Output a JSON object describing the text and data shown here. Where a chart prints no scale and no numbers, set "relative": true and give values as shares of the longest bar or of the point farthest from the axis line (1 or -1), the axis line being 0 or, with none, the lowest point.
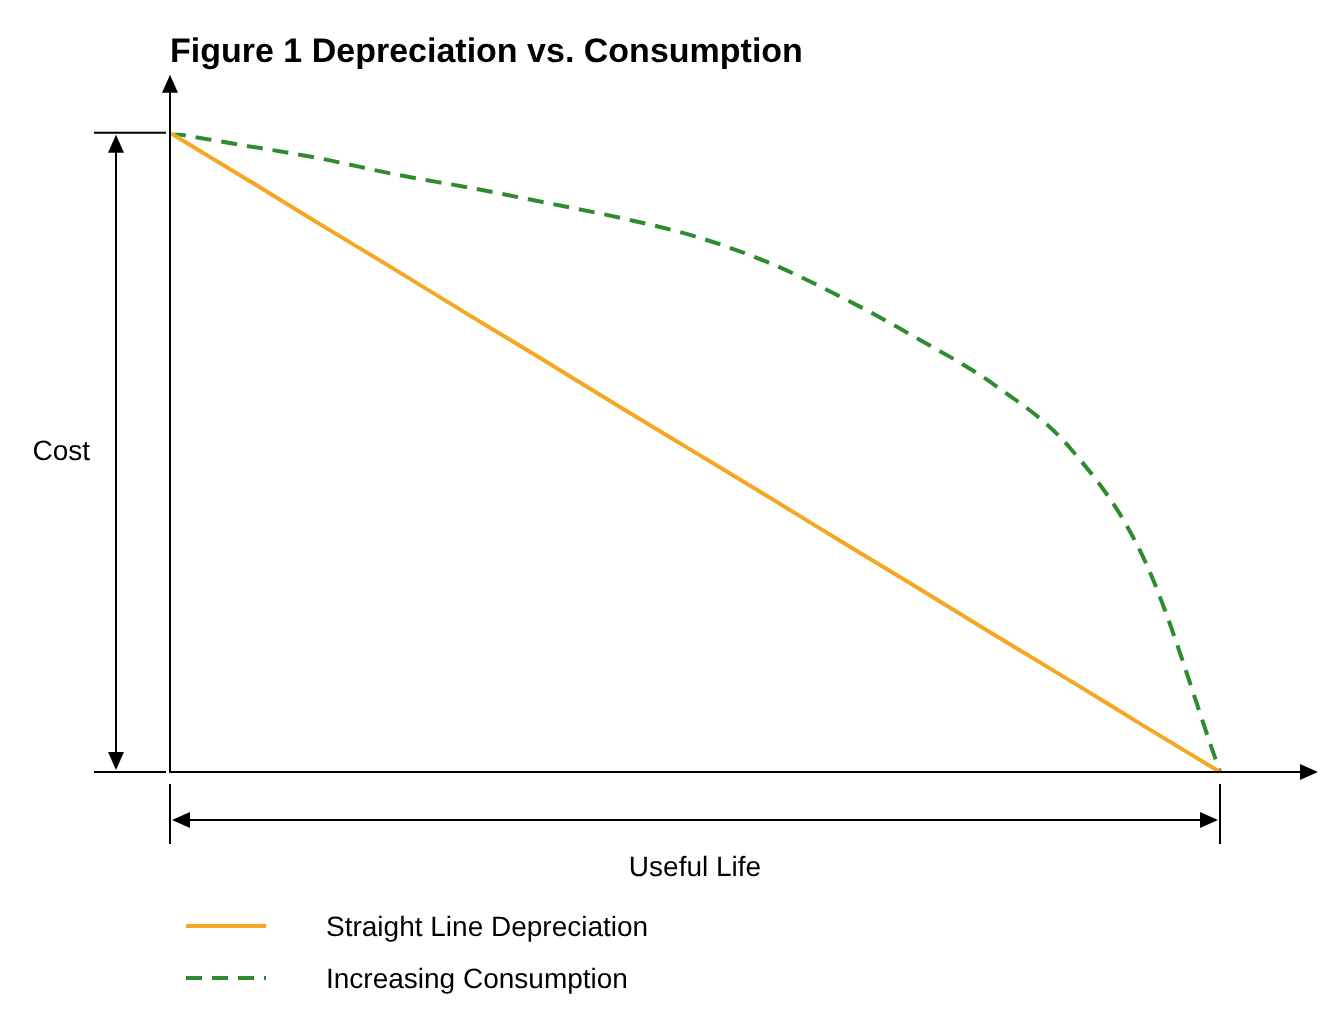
{
  "chart_data": {
    "type": "line",
    "title": "Figure 1 Depreciation vs. Consumption",
    "relative": true,
    "categories": [
      null,
      null,
      null,
      null,
      null,
      null,
      null,
      null,
      null,
      null,
      null,
      null,
      null,
      null,
      null
    ],
    "series": [
      {
        "name": "Straight Line Depreciation",
        "color": "#f5a623",
        "line_style": "solid",
        "values": [
          1,
          0.929,
          0.857,
          0.786,
          0.714,
          0.643,
          0.571,
          0.5,
          0.429,
          0.357,
          0.286,
          0.214,
          0.143,
          0.071,
          0
        ]
      },
      {
        "name": "Increasing Consumption",
        "color": "#2e8b2e",
        "line_style": "dashed",
        "values": [
          1,
          0.98,
          0.96,
          0.935,
          0.914,
          0.891,
          0.867,
          0.838,
          0.796,
          0.74,
          0.676,
          0.605,
          0.507,
          0.33,
          0
        ]
      }
    ],
    "annotations": [
      "Cost",
      "Useful Life"
    ],
    "legend": "bottom",
    "marker": "none"
  }
}
